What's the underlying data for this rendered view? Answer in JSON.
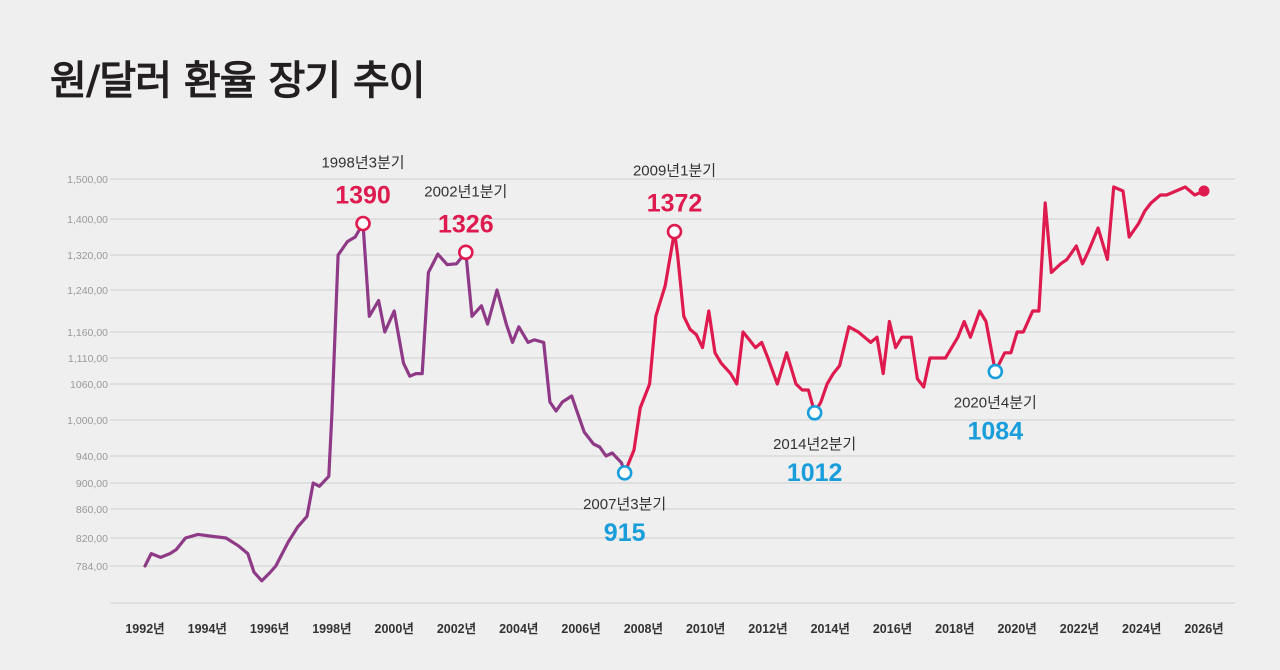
{
  "title": "원/달러 환율 장기 추이",
  "colors": {
    "early": "#8e3a86",
    "late": "#de1a4f",
    "high": "#de1a4f",
    "low": "#1a9edb",
    "grid": "#cfcfcf"
  },
  "chart_data": {
    "type": "line",
    "title": "원/달러 환율 장기 추이",
    "xlabel": "",
    "ylabel": "",
    "xlim": [
      1992,
      2026.3
    ],
    "y_ticks": [
      {
        "value": 784,
        "label": "784,00"
      },
      {
        "value": 820,
        "label": "820,00"
      },
      {
        "value": 860,
        "label": "860,00"
      },
      {
        "value": 900,
        "label": "900,00"
      },
      {
        "value": 940,
        "label": "940,00"
      },
      {
        "value": 1000,
        "label": "1,000,00"
      },
      {
        "value": 1060,
        "label": "1060,00"
      },
      {
        "value": 1110,
        "label": "1,110,00"
      },
      {
        "value": 1160,
        "label": "1,160,00"
      },
      {
        "value": 1240,
        "label": "1,240,00"
      },
      {
        "value": 1320,
        "label": "1,320,00"
      },
      {
        "value": 1400,
        "label": "1,400,00"
      },
      {
        "value": 1500,
        "label": "1,500,00"
      }
    ],
    "x_ticks": [
      {
        "value": 1992,
        "label": "1992년"
      },
      {
        "value": 1994,
        "label": "1994년"
      },
      {
        "value": 1996,
        "label": "1996년"
      },
      {
        "value": 1998,
        "label": "1998년"
      },
      {
        "value": 2000,
        "label": "2000년"
      },
      {
        "value": 2002,
        "label": "2002년"
      },
      {
        "value": 2004,
        "label": "2004년"
      },
      {
        "value": 2006,
        "label": "2006년"
      },
      {
        "value": 2008,
        "label": "2008년"
      },
      {
        "value": 2010,
        "label": "2010년"
      },
      {
        "value": 2012,
        "label": "2012년"
      },
      {
        "value": 2014,
        "label": "2014년"
      },
      {
        "value": 2016,
        "label": "2016년"
      },
      {
        "value": 2018,
        "label": "2018년"
      },
      {
        "value": 2020,
        "label": "2020년"
      },
      {
        "value": 2022,
        "label": "2022년"
      },
      {
        "value": 2024,
        "label": "2024년"
      },
      {
        "value": 2026,
        "label": "2026년"
      }
    ],
    "series": [
      {
        "name": "early",
        "x": [
          1992.0,
          1992.2,
          1992.5,
          1992.8,
          1993.0,
          1993.3,
          1993.7,
          1994.2,
          1994.6,
          1995.0,
          1995.3,
          1995.5,
          1995.75,
          1996.0,
          1996.2,
          1996.6,
          1996.9,
          1997.2,
          1997.4,
          1997.6,
          1997.9,
          1998.0,
          1998.2,
          1998.5,
          1998.75,
          1999.0,
          1999.2,
          1999.5,
          1999.7,
          2000.0,
          2000.3,
          2000.5,
          2000.7,
          2000.9,
          2001.1,
          2001.4,
          2001.7,
          2002.0,
          2002.3,
          2002.5,
          2002.8,
          2003.0,
          2003.3,
          2003.6,
          2003.8,
          2004.0,
          2004.3,
          2004.5,
          2004.8,
          2005.0,
          2005.2,
          2005.4,
          2005.7,
          2005.9,
          2006.1,
          2006.4,
          2006.6,
          2006.8,
          2007.0,
          2007.3,
          2007.4
        ],
        "y": [
          784,
          800,
          795,
          800,
          805,
          820,
          825,
          822,
          820,
          810,
          800,
          776,
          765,
          775,
          784,
          815,
          835,
          850,
          900,
          895,
          910,
          1010,
          1320,
          1350,
          1360,
          1390,
          1190,
          1220,
          1160,
          1200,
          1100,
          1075,
          1080,
          1080,
          1280,
          1322,
          1298,
          1300,
          1326,
          1190,
          1210,
          1175,
          1240,
          1175,
          1140,
          1170,
          1140,
          1145,
          1140,
          1030,
          1015,
          1030,
          1040,
          1010,
          980,
          960,
          955,
          940,
          945,
          930,
          915
        ]
      },
      {
        "name": "late",
        "x": [
          2007.4,
          2007.7,
          2007.9,
          2008.2,
          2008.4,
          2008.7,
          2009.0,
          2009.1,
          2009.3,
          2009.5,
          2009.7,
          2009.9,
          2010.1,
          2010.3,
          2010.5,
          2010.8,
          2011.0,
          2011.2,
          2011.4,
          2011.6,
          2011.8,
          2012.0,
          2012.3,
          2012.6,
          2012.9,
          2013.1,
          2013.3,
          2013.5,
          2013.7,
          2013.9,
          2014.1,
          2014.3,
          2014.6,
          2014.9,
          2015.1,
          2015.3,
          2015.5,
          2015.7,
          2015.9,
          2016.1,
          2016.3,
          2016.6,
          2016.8,
          2017.0,
          2017.2,
          2017.4,
          2017.7,
          2017.9,
          2018.1,
          2018.3,
          2018.5,
          2018.8,
          2019.0,
          2019.3,
          2019.6,
          2019.8,
          2020.0,
          2020.2,
          2020.5,
          2020.7,
          2020.9,
          2021.1,
          2021.4,
          2021.6,
          2021.9,
          2022.1,
          2022.3,
          2022.6,
          2022.9,
          2023.1,
          2023.4,
          2023.6,
          2023.9,
          2024.1,
          2024.3,
          2024.6,
          2024.8,
          2025.1,
          2025.4,
          2025.7,
          2026.0
        ],
        "y": [
          915,
          950,
          1020,
          1060,
          1190,
          1250,
          1372,
          1320,
          1190,
          1165,
          1155,
          1130,
          1200,
          1120,
          1100,
          1080,
          1060,
          1160,
          1145,
          1130,
          1140,
          1110,
          1060,
          1120,
          1060,
          1050,
          1050,
          1012,
          1030,
          1060,
          1080,
          1095,
          1170,
          1160,
          1150,
          1140,
          1150,
          1080,
          1180,
          1130,
          1150,
          1150,
          1070,
          1055,
          1110,
          1110,
          1110,
          1130,
          1150,
          1180,
          1150,
          1200,
          1180,
          1084,
          1120,
          1120,
          1160,
          1160,
          1200,
          1200,
          1440,
          1280,
          1300,
          1310,
          1340,
          1300,
          1330,
          1380,
          1310,
          1480,
          1470,
          1360,
          1390,
          1420,
          1440,
          1460,
          1460,
          1470,
          1480,
          1460,
          1470
        ]
      }
    ],
    "annotations": [
      {
        "kind": "high",
        "x": 1999.0,
        "y": 1390,
        "label": "1998년3분기",
        "value": "1390"
      },
      {
        "kind": "high",
        "x": 2002.3,
        "y": 1326,
        "label": "2002년1분기",
        "value": "1326"
      },
      {
        "kind": "high",
        "x": 2009.0,
        "y": 1372,
        "label": "2009년1분기",
        "value": "1372"
      },
      {
        "kind": "low",
        "x": 2007.4,
        "y": 915,
        "label": "2007년3분기",
        "value": "915"
      },
      {
        "kind": "low",
        "x": 2013.5,
        "y": 1012,
        "label": "2014년2분기",
        "value": "1012"
      },
      {
        "kind": "low",
        "x": 2019.3,
        "y": 1084,
        "label": "2020년4분기",
        "value": "1084"
      }
    ],
    "end_point": {
      "x": 2026.0,
      "y": 1470
    }
  }
}
